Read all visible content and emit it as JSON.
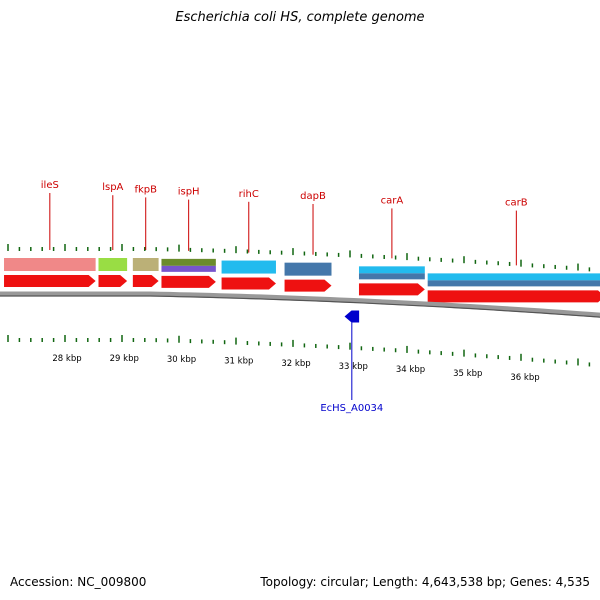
{
  "title": "Escherichia coli HS, complete genome",
  "footer": {
    "accession": "Accession: NC_009800",
    "summary": "Topology: circular; Length: 4,643,538 bp; Genes: 4,535"
  },
  "colors": {
    "gene_label": "#cc0000",
    "gene_feature": "#ee1111",
    "highlight": "#0000cc",
    "backbone": "#888888",
    "tick": "#116611"
  },
  "chart_data": {
    "type": "genome-map-segment",
    "kbp_ticks": [
      {
        "kbp": 28,
        "label": "28 kbp"
      },
      {
        "kbp": 29,
        "label": "29 kbp"
      },
      {
        "kbp": 30,
        "label": "30 kbp"
      },
      {
        "kbp": 31,
        "label": "31 kbp"
      },
      {
        "kbp": 32,
        "label": "32 kbp"
      },
      {
        "kbp": 33,
        "label": "33 kbp"
      },
      {
        "kbp": 34,
        "label": "34 kbp"
      },
      {
        "kbp": 35,
        "label": "35 kbp"
      },
      {
        "kbp": 36,
        "label": "36 kbp"
      }
    ],
    "genes": [
      {
        "name": "ileS",
        "start_kbp": 26.9,
        "end_kbp": 28.5,
        "strand": "+",
        "cog_color": "#f08888"
      },
      {
        "name": "lspA",
        "start_kbp": 28.55,
        "end_kbp": 29.05,
        "strand": "+",
        "cog_color": "#99dd44"
      },
      {
        "name": "fkpB",
        "start_kbp": 29.15,
        "end_kbp": 29.6,
        "strand": "+",
        "cog_color": "#bbb077"
      },
      {
        "name": "ispH",
        "start_kbp": 29.65,
        "end_kbp": 30.6,
        "strand": "+",
        "cog_color": "#6b8b2b",
        "cog_color2": "#7755cc"
      },
      {
        "name": "rihC",
        "start_kbp": 30.7,
        "end_kbp": 31.65,
        "strand": "+",
        "cog_color": "#22bbee"
      },
      {
        "name": "dapB",
        "start_kbp": 31.8,
        "end_kbp": 32.62,
        "strand": "+",
        "cog_color": "#4477aa"
      },
      {
        "name": "EcHS_A0034",
        "start_kbp": 32.9,
        "end_kbp": 33.05,
        "strand": "-",
        "cog_color": ""
      },
      {
        "name": "carA",
        "start_kbp": 33.1,
        "end_kbp": 34.25,
        "strand": "+",
        "cog_color": "#22bbee",
        "cog_color2": "#4477aa"
      },
      {
        "name": "carB",
        "start_kbp": 34.3,
        "end_kbp": 37.6,
        "strand": "+",
        "cog_color": "#22bbee",
        "cog_color2": "#4477aa"
      }
    ]
  }
}
